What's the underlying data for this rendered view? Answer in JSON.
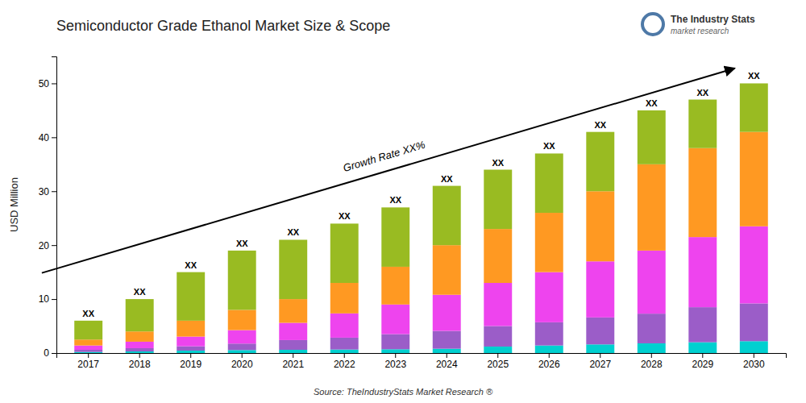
{
  "chart_data": {
    "type": "bar",
    "stacked": true,
    "title": "Semiconductor Grade Ethanol Market Size & Scope",
    "ylabel": "USD Million",
    "source": "Source: TheIndustryStats Market Research ®",
    "bar_label": "XX",
    "annotation": "Growth Rate XX%",
    "logo": [
      "The Industry Stats",
      "market research"
    ],
    "categories": [
      "2017",
      "2018",
      "2019",
      "2020",
      "2021",
      "2022",
      "2023",
      "2024",
      "2025",
      "2026",
      "2027",
      "2028",
      "2029",
      "2030"
    ],
    "series": [
      {
        "color": "#00d0d0",
        "values": [
          0.2,
          0.3,
          0.45,
          0.55,
          0.6,
          0.65,
          0.7,
          0.8,
          1.2,
          1.4,
          1.6,
          1.8,
          2.0,
          2.2
        ]
      },
      {
        "color": "#9b5dc8",
        "values": [
          0.4,
          0.6,
          0.8,
          1.2,
          1.8,
          2.2,
          2.8,
          3.3,
          3.8,
          4.3,
          5.0,
          5.5,
          6.5,
          7.0
        ]
      },
      {
        "color": "#ee44ee",
        "values": [
          0.8,
          1.2,
          1.8,
          2.5,
          3.2,
          4.5,
          5.5,
          6.7,
          8.0,
          9.3,
          10.4,
          11.7,
          13.0,
          14.3
        ]
      },
      {
        "color": "#ff9922",
        "values": [
          1.1,
          1.9,
          2.95,
          3.75,
          4.4,
          5.65,
          7.0,
          9.2,
          10.0,
          11.0,
          13.0,
          16.0,
          16.5,
          17.5
        ]
      },
      {
        "color": "#99bb22",
        "values": [
          3.5,
          6.0,
          9.0,
          11.0,
          11.0,
          11.0,
          11.0,
          11.0,
          11.0,
          11.0,
          11.0,
          10.0,
          9.0,
          9.0
        ]
      }
    ],
    "ylim": [
      0,
      55
    ],
    "yticks": [
      0,
      10,
      20,
      30,
      40,
      50
    ],
    "grid": false
  }
}
